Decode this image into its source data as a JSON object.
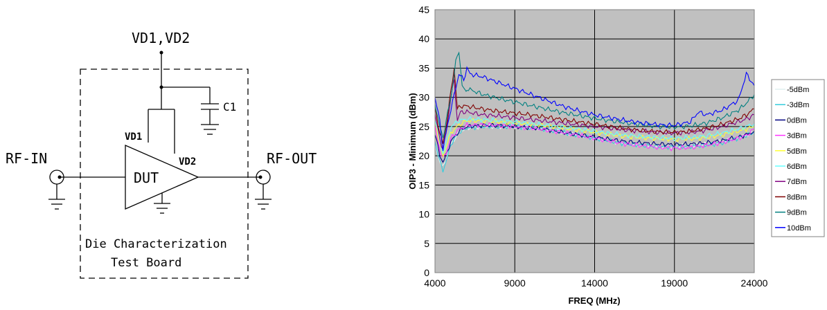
{
  "schematic": {
    "supply_label": "VD1,VD2",
    "cap_label": "C1",
    "vd1_label": "VD1",
    "vd2_label": "VD2",
    "dut_label": "DUT",
    "rf_in_label": "RF-IN",
    "rf_out_label": "RF-OUT",
    "board_label_line1": "Die Characterization",
    "board_label_line2": "Test Board"
  },
  "chart_data": {
    "type": "line",
    "xlabel": "FREQ (MHz)",
    "ylabel": "OIP3 - Minimum (dBm)",
    "xlim": [
      4000,
      24000
    ],
    "ylim": [
      0,
      45
    ],
    "xticks": [
      4000,
      9000,
      14000,
      19000,
      24000
    ],
    "yticks": [
      0,
      5,
      10,
      15,
      20,
      25,
      30,
      35,
      40,
      45
    ],
    "grid": true,
    "legend_position": "right",
    "series": [
      {
        "name": "-5dBm",
        "color": "#e0f0f0",
        "x": [
          4000,
          4300,
          4500,
          4700,
          5000,
          5500,
          6000,
          7000,
          8000,
          9000,
          10000,
          11000,
          12000,
          13000,
          14000,
          15000,
          16000,
          17000,
          18000,
          19000,
          20000,
          21000,
          22000,
          23000,
          23500,
          24000
        ],
        "y": [
          22,
          19,
          18,
          19.5,
          22,
          24,
          24.8,
          25,
          25,
          25,
          24.8,
          24.5,
          24,
          23.5,
          23,
          22.5,
          22,
          21.8,
          21.6,
          21.5,
          21.8,
          22,
          22.5,
          23,
          23.5,
          24
        ]
      },
      {
        "name": "-3dBm",
        "color": "#33ccdd",
        "x": [
          4000,
          4300,
          4500,
          4700,
          5000,
          5500,
          6000,
          7000,
          8000,
          9000,
          10000,
          11000,
          12000,
          13000,
          14000,
          15000,
          16000,
          17000,
          18000,
          19000,
          20000,
          21000,
          22000,
          23000,
          23500,
          24000
        ],
        "y": [
          22.5,
          19,
          17.5,
          19,
          22,
          24,
          24.8,
          25,
          25,
          25,
          24.8,
          24.5,
          24,
          23.5,
          23,
          22.5,
          22,
          21.8,
          21.6,
          21.5,
          21.6,
          21.8,
          22.2,
          23,
          23.5,
          24
        ]
      },
      {
        "name": "0dBm",
        "color": "#000080",
        "x": [
          4000,
          4300,
          4500,
          4700,
          5000,
          5500,
          6000,
          7000,
          8000,
          9000,
          10000,
          11000,
          12000,
          13000,
          14000,
          15000,
          16000,
          17000,
          18000,
          19000,
          20000,
          21000,
          22000,
          23000,
          23500,
          24000
        ],
        "y": [
          24,
          20,
          19,
          20,
          22.5,
          24.2,
          25,
          25.2,
          25.2,
          25,
          24.8,
          24.5,
          24,
          23.6,
          23.2,
          22.8,
          22.4,
          22.2,
          22,
          21.9,
          22,
          22.2,
          22.6,
          23.2,
          23.6,
          24.2
        ]
      },
      {
        "name": "3dBm",
        "color": "#ff33ff",
        "x": [
          4000,
          4300,
          4500,
          4700,
          5000,
          5500,
          6000,
          7000,
          8000,
          9000,
          10000,
          11000,
          12000,
          13000,
          14000,
          15000,
          16000,
          17000,
          18000,
          19000,
          20000,
          21000,
          22000,
          23000,
          23500,
          24000
        ],
        "y": [
          25,
          21,
          19.5,
          20.5,
          23,
          24.5,
          25.2,
          25.3,
          25.2,
          25,
          24.8,
          24.4,
          24,
          23.5,
          23,
          22.5,
          22,
          21.7,
          21.4,
          21.3,
          21.4,
          21.8,
          22.3,
          23,
          23.5,
          24.5
        ]
      },
      {
        "name": "5dBm",
        "color": "#ffff33",
        "x": [
          4000,
          4300,
          4500,
          4700,
          5000,
          5500,
          6000,
          7000,
          8000,
          9000,
          10000,
          11000,
          12000,
          13000,
          14000,
          15000,
          16000,
          17000,
          18000,
          19000,
          20000,
          21000,
          22000,
          23000,
          23500,
          24000
        ],
        "y": [
          26,
          22,
          20,
          21.5,
          24,
          25.3,
          26,
          26,
          25.8,
          25.6,
          25.4,
          25.1,
          24.8,
          24.4,
          24,
          23.6,
          23.3,
          23.1,
          22.9,
          22.8,
          22.9,
          23.1,
          23.6,
          24.2,
          24.6,
          25
        ]
      },
      {
        "name": "6dBm",
        "color": "#66ffff",
        "x": [
          4000,
          4300,
          4500,
          4700,
          5000,
          5500,
          6000,
          7000,
          8000,
          9000,
          10000,
          11000,
          12000,
          13000,
          14000,
          15000,
          16000,
          17000,
          18000,
          19000,
          20000,
          21000,
          22000,
          23000,
          23500,
          24000
        ],
        "y": [
          26.5,
          22.5,
          20.5,
          22,
          25,
          26,
          26.3,
          26.2,
          26,
          25.8,
          25.5,
          25.2,
          24.9,
          24.6,
          24.2,
          23.8,
          23.5,
          23.3,
          23.1,
          23,
          23.1,
          23.4,
          23.9,
          24.6,
          25,
          25.5
        ]
      },
      {
        "name": "7dBm",
        "color": "#800080",
        "x": [
          4000,
          4300,
          4500,
          4700,
          5000,
          5200,
          5400,
          5600,
          6000,
          7000,
          8000,
          9000,
          10000,
          11000,
          12000,
          13000,
          14000,
          15000,
          16000,
          17000,
          18000,
          19000,
          20000,
          21000,
          22000,
          23000,
          23500,
          24000
        ],
        "y": [
          27,
          23,
          21,
          24,
          30,
          33,
          26,
          27.5,
          27.5,
          27,
          26.8,
          26.5,
          26.2,
          25.9,
          25.6,
          25.3,
          25,
          24.7,
          24.4,
          24.2,
          24,
          23.9,
          24,
          24.4,
          25,
          25.8,
          26.3,
          27
        ]
      },
      {
        "name": "8dBm",
        "color": "#800000",
        "x": [
          4000,
          4300,
          4500,
          4700,
          5000,
          5200,
          5400,
          5600,
          6000,
          7000,
          8000,
          9000,
          10000,
          11000,
          12000,
          13000,
          14000,
          15000,
          16000,
          17000,
          18000,
          19000,
          20000,
          21000,
          22000,
          23000,
          23500,
          24000
        ],
        "y": [
          28,
          24,
          22,
          25,
          31,
          35,
          28,
          28.5,
          28.5,
          28,
          27.6,
          27.3,
          27,
          26.6,
          26.2,
          25.8,
          25.4,
          25,
          24.6,
          24.3,
          24.1,
          24,
          24.2,
          24.7,
          25.4,
          26.3,
          27,
          28
        ]
      },
      {
        "name": "9dBm",
        "color": "#008080",
        "x": [
          4000,
          4300,
          4500,
          4700,
          5000,
          5300,
          5500,
          5700,
          5900,
          6000,
          7000,
          8000,
          9000,
          10000,
          11000,
          12000,
          13000,
          14000,
          15000,
          16000,
          17000,
          18000,
          19000,
          20000,
          21000,
          22000,
          23000,
          23500,
          24000
        ],
        "y": [
          29,
          25,
          23,
          26,
          30,
          36,
          38,
          32,
          31,
          31.5,
          30.5,
          29.8,
          29.2,
          28.6,
          28,
          27.4,
          26.9,
          26.4,
          26,
          25.6,
          25.3,
          25,
          24.9,
          25.1,
          25.6,
          26.5,
          27.8,
          29,
          30.5
        ]
      },
      {
        "name": "10dBm",
        "color": "#0000ff",
        "x": [
          4000,
          4300,
          4500,
          4700,
          5000,
          5500,
          5800,
          6000,
          6200,
          7000,
          8000,
          9000,
          10000,
          11000,
          12000,
          13000,
          14000,
          15000,
          16000,
          17000,
          18000,
          19000,
          20000,
          20500,
          21000,
          22000,
          23000,
          23500,
          24000
        ],
        "y": [
          30,
          26,
          21,
          24,
          28,
          34,
          33,
          35,
          34,
          33.5,
          32.5,
          31.5,
          30.5,
          29.5,
          28.5,
          27.7,
          27,
          26.5,
          26,
          25.6,
          25.3,
          25.2,
          25.8,
          27.5,
          27,
          27.8,
          29.5,
          34,
          32
        ]
      }
    ]
  }
}
